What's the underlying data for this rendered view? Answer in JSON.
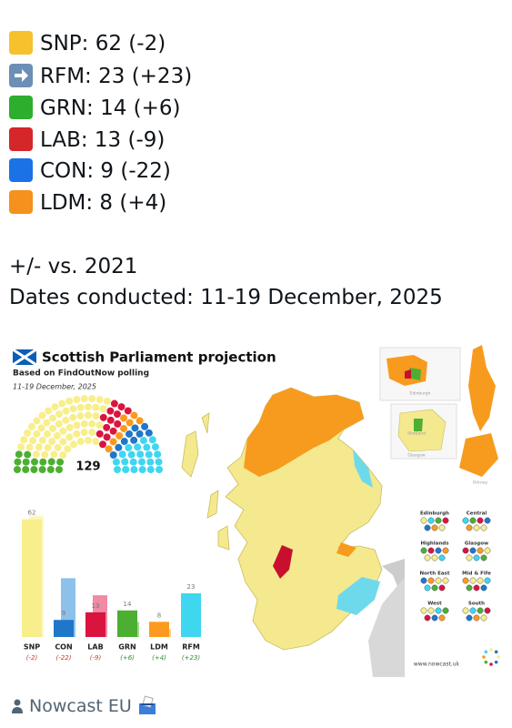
{
  "post": {
    "lines": [
      {
        "text": "SNP: 62 (-2)",
        "color": "#f6c12d"
      },
      {
        "text": "RFM: 23 (+23)",
        "color": "#6b8fb5"
      },
      {
        "text": "GRN: 14 (+6)",
        "color": "#2eae2e"
      },
      {
        "text": "LAB: 13 (-9)",
        "color": "#d5262a"
      },
      {
        "text": "CON: 9 (-22)",
        "color": "#1a72e6"
      },
      {
        "text": "LDM: 8 (+4)",
        "color": "#f6911d"
      }
    ],
    "note": "+/- vs. 2021",
    "dates": "Dates conducted: 11-19 December, 2025",
    "author": "Nowcast EU"
  },
  "chart_data": {
    "type": "bar",
    "title": "Scottish Parliament projection",
    "subtitle": "Based on FindOutNow polling",
    "date": "11-19 December, 2025",
    "total": 129,
    "categories": [
      "SNP",
      "CON",
      "LAB",
      "GRN",
      "LDM",
      "RFM"
    ],
    "values": [
      62,
      9,
      13,
      14,
      8,
      23
    ],
    "previous_values": [
      64,
      31,
      22,
      8,
      4,
      0
    ],
    "changes": [
      "(-2)",
      "(-22)",
      "(-9)",
      "(+6)",
      "(+4)",
      "(+23)"
    ],
    "colors": [
      "#f8ee8c",
      "#1f77c9",
      "#d9143f",
      "#4caf32",
      "#fb9a1f",
      "#3fd6f0"
    ],
    "previous_colors": [
      "#fdf7c2",
      "#8ec1ea",
      "#f08aa5",
      "#a9d88f",
      "#fcd08a",
      "#b6eef8"
    ],
    "change_colors": [
      "#c0392b",
      "#c0392b",
      "#c0392b",
      "#2e8b2e",
      "#2e8b2e",
      "#2e8b2e"
    ],
    "ylim": [
      0,
      70
    ]
  },
  "map": {
    "regions": [
      "Edinburgh",
      "Central",
      "Highlands",
      "Glasgow",
      "North East",
      "Mid & Fife",
      "West",
      "South"
    ],
    "insets": [
      "Edinburgh",
      "Shetland",
      "Glasgow",
      "Orkney"
    ],
    "source": "www.nowcast.uk"
  }
}
